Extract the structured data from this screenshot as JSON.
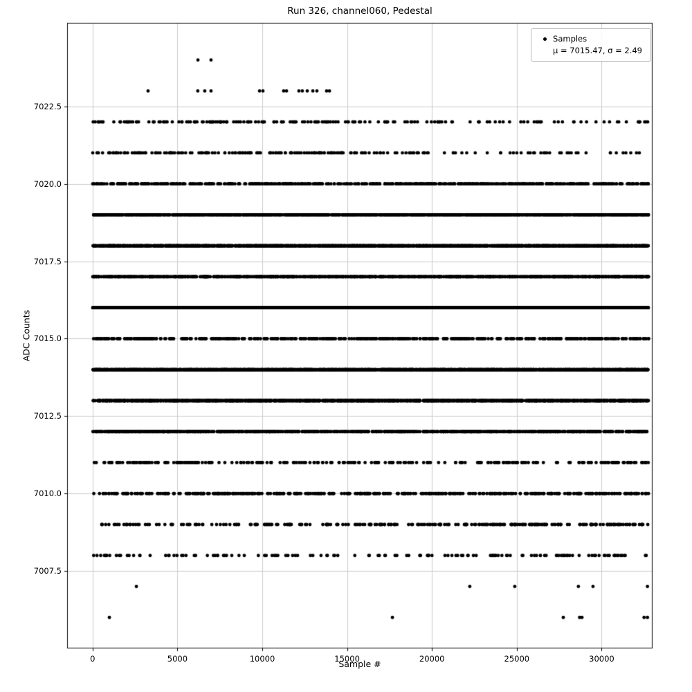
{
  "figure": {
    "title": "Run 326, channel060, Pedestal",
    "xlabel": "Sample #",
    "ylabel": "ADC Counts",
    "background": "#ffffff",
    "legend": {
      "marker": "black-dot",
      "line1": "Samples",
      "line2": "μ = 7015.47, σ = 2.49"
    }
  },
  "chart_data": {
    "type": "scatter",
    "title": "Run 326, channel060, Pedestal",
    "xlabel": "Sample #",
    "ylabel": "ADC Counts",
    "xlim": [
      -1500,
      33000
    ],
    "ylim": [
      7005.0,
      7025.2
    ],
    "xticks": [
      0,
      5000,
      10000,
      15000,
      20000,
      25000,
      30000
    ],
    "yticks": [
      7007.5,
      7010.0,
      7012.5,
      7015.0,
      7017.5,
      7020.0,
      7022.5
    ],
    "grid": true,
    "grid_color": "#cccccc",
    "legend_position": "upper right",
    "marker_color": "#000000",
    "marker_radius_px": 2.4,
    "n_samples": 32768,
    "mean": 7015.47,
    "sigma": 2.49,
    "x_range": [
      0,
      32767
    ],
    "adc_levels": [
      {
        "adc": 7006,
        "x_positions": [
          990,
          17670,
          27740,
          28700,
          28840,
          32500,
          32700
        ]
      },
      {
        "adc": 7007,
        "x_positions": [
          2580,
          22230,
          24880,
          28630,
          29490,
          32700
        ]
      },
      {
        "adc": 7008,
        "approx_count": 140,
        "skew": "right"
      },
      {
        "adc": 7009,
        "approx_count": 280,
        "skew": "right"
      },
      {
        "adc": 7010,
        "approx_count": 430
      },
      {
        "adc": 7011,
        "approx_count": 250
      },
      {
        "adc": 7012,
        "approx_count": 1050
      },
      {
        "adc": 7013,
        "approx_count": 1700
      },
      {
        "adc": 7014,
        "approx_count": 2600
      },
      {
        "adc": 7015,
        "approx_count": 500
      },
      {
        "adc": 7016,
        "approx_count": 2800
      },
      {
        "adc": 7017,
        "approx_count": 1350
      },
      {
        "adc": 7018,
        "approx_count": 2500
      },
      {
        "adc": 7019,
        "approx_count": 1200
      },
      {
        "adc": 7020,
        "approx_count": 560
      },
      {
        "adc": 7021,
        "approx_count": 210,
        "skew": "left"
      },
      {
        "adc": 7022,
        "approx_count": 185,
        "skew": "left"
      },
      {
        "adc": 7023,
        "x_positions": [
          3270,
          6200,
          6610,
          6980,
          9840,
          10040,
          11260,
          11430,
          12160,
          12360,
          12650,
          12980,
          13220,
          13790,
          13960
        ]
      },
      {
        "adc": 7024,
        "x_positions": [
          6210,
          6980
        ]
      }
    ]
  }
}
